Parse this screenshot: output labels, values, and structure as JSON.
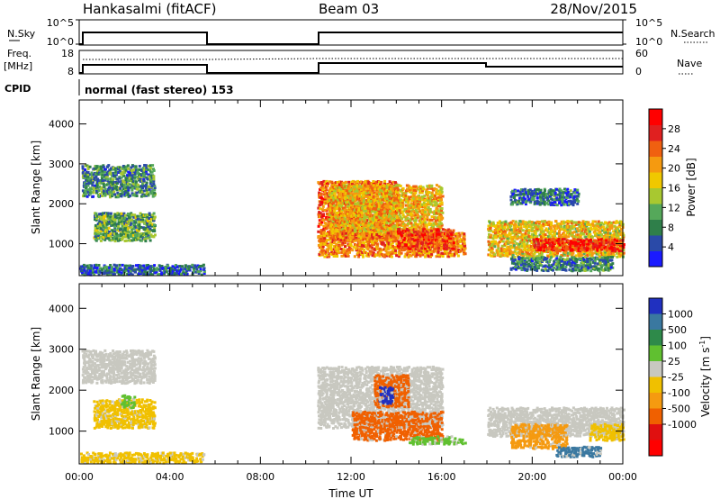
{
  "header": {
    "station": "Hankasalmi (fitACF)",
    "beam": "Beam 03",
    "date": "28/Nov/2015"
  },
  "top_panels": {
    "nsky": {
      "label": "N.Sky",
      "ticks": [
        "10^5",
        "10^0"
      ]
    },
    "nsearch": {
      "label": "N.Search",
      "ticks": [
        "10^5",
        "10^0"
      ]
    },
    "freq": {
      "label_line1": "Freq.",
      "label_line2": "[MHz]",
      "ticks": [
        "18",
        "8"
      ]
    },
    "nave": {
      "label": "Nave",
      "ticks": [
        "60",
        "0"
      ]
    },
    "cpid": {
      "label": "CPID",
      "text": "normal (fast stereo) 153"
    }
  },
  "colors": {
    "power": [
      "#1a1aff",
      "#2a4aa8",
      "#2f7f4a",
      "#55a85a",
      "#a8c830",
      "#f0c800",
      "#f59a10",
      "#f06010",
      "#e02020",
      "#ff0000"
    ],
    "velocity": {
      "v_pos_high": "#2030c0",
      "v_pos_mid": "#3a78a0",
      "v_pos_low": "#2e8a4a",
      "v_small_pos": "#60c030",
      "v_zero": "#c8c8c0",
      "v_small_neg": "#f0c000",
      "v_neg_low": "#f59a10",
      "v_neg_mid": "#f06000",
      "v_neg_high": "#e01010",
      "v_neg_max": "#ff0000"
    }
  },
  "chart_data": [
    {
      "type": "heatmap",
      "name": "power",
      "xlabel": "",
      "ylabel": "Slant Range [km]",
      "ylim": [
        200,
        4600
      ],
      "xlim_hours": [
        0,
        24
      ],
      "y_ticks": [
        "1000",
        "2000",
        "3000",
        "4000"
      ],
      "colorbar": {
        "label": "Power [dB]",
        "ticks": [
          "4",
          "8",
          "12",
          "16",
          "20",
          "24",
          "28"
        ],
        "range": [
          0,
          32
        ]
      },
      "regions": [
        {
          "t0": 0.1,
          "t1": 3.3,
          "r0": 2200,
          "r1": 3000,
          "value": 9
        },
        {
          "t0": 0.6,
          "t1": 3.3,
          "r0": 1100,
          "r1": 1800,
          "value": 11
        },
        {
          "t0": 0.0,
          "t1": 5.5,
          "r0": 250,
          "r1": 500,
          "value": 6
        },
        {
          "t0": 10.5,
          "t1": 14.0,
          "r0": 1100,
          "r1": 2600,
          "value": 24
        },
        {
          "t0": 11.0,
          "t1": 16.0,
          "r0": 1200,
          "r1": 2500,
          "value": 19
        },
        {
          "t0": 10.5,
          "t1": 17.0,
          "r0": 700,
          "r1": 1300,
          "value": 22
        },
        {
          "t0": 14.0,
          "t1": 16.5,
          "r0": 900,
          "r1": 1400,
          "value": 26
        },
        {
          "t0": 18.0,
          "t1": 24.0,
          "r0": 700,
          "r1": 1600,
          "value": 18
        },
        {
          "t0": 20.0,
          "t1": 24.0,
          "r0": 850,
          "r1": 1150,
          "value": 28
        },
        {
          "t0": 19.0,
          "t1": 23.5,
          "r0": 350,
          "r1": 700,
          "value": 8
        },
        {
          "t0": 19.0,
          "t1": 22.0,
          "r0": 2000,
          "r1": 2400,
          "value": 7
        }
      ]
    },
    {
      "type": "heatmap",
      "name": "velocity",
      "xlabel": "Time UT",
      "ylabel": "Slant Range [km]",
      "ylim": [
        200,
        4600
      ],
      "xlim_hours": [
        0,
        24
      ],
      "x_ticks": [
        "00:00",
        "04:00",
        "08:00",
        "12:00",
        "16:00",
        "20:00",
        "00:00"
      ],
      "y_ticks": [
        "1000",
        "2000",
        "3000",
        "4000"
      ],
      "colorbar": {
        "label": "Velocity [m s",
        "label_sup": "-1",
        "label_close": "]",
        "ticks": [
          "1000",
          "500",
          "100",
          "25",
          "-25",
          "-100",
          "-500",
          "-1000"
        ]
      },
      "regions": [
        {
          "t0": 0.1,
          "t1": 3.3,
          "r0": 2200,
          "r1": 3000,
          "value": "v_zero"
        },
        {
          "t0": 0.6,
          "t1": 3.3,
          "r0": 1100,
          "r1": 1800,
          "value": "v_small_neg"
        },
        {
          "t0": 1.8,
          "t1": 2.4,
          "r0": 1600,
          "r1": 1900,
          "value": "v_small_pos"
        },
        {
          "t0": 0.0,
          "t1": 5.5,
          "r0": 250,
          "r1": 500,
          "value": "v_small_neg"
        },
        {
          "t0": 10.5,
          "t1": 16.0,
          "r0": 1100,
          "r1": 2600,
          "value": "v_zero"
        },
        {
          "t0": 12.0,
          "t1": 16.0,
          "r0": 800,
          "r1": 1500,
          "value": "v_neg_mid"
        },
        {
          "t0": 13.0,
          "t1": 14.5,
          "r0": 1600,
          "r1": 2400,
          "value": "v_neg_mid"
        },
        {
          "t0": 13.2,
          "t1": 13.8,
          "r0": 1700,
          "r1": 2100,
          "value": "v_pos_high"
        },
        {
          "t0": 14.5,
          "t1": 17.0,
          "r0": 700,
          "r1": 900,
          "value": "v_small_pos"
        },
        {
          "t0": 18.0,
          "t1": 24.0,
          "r0": 900,
          "r1": 1600,
          "value": "v_zero"
        },
        {
          "t0": 19.0,
          "t1": 21.5,
          "r0": 600,
          "r1": 1200,
          "value": "v_neg_low"
        },
        {
          "t0": 22.5,
          "t1": 24.0,
          "r0": 800,
          "r1": 1200,
          "value": "v_small_neg"
        },
        {
          "t0": 21.0,
          "t1": 23.0,
          "r0": 400,
          "r1": 650,
          "value": "v_pos_mid"
        }
      ]
    }
  ]
}
